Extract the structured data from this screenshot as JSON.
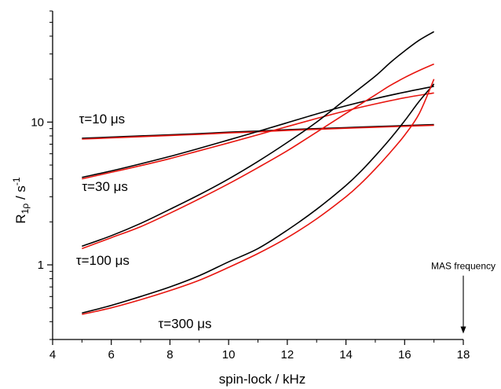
{
  "chart_data": {
    "type": "line",
    "title": "",
    "xlabel": "spin-lock / kHz",
    "ylabel": {
      "main": "R",
      "sub": "1ρ",
      "unit_prefix": " / s",
      "sup": "-1"
    },
    "xlim": [
      4,
      18
    ],
    "ylim": [
      0.3,
      60
    ],
    "yscale": "log",
    "x_ticks": [
      4,
      6,
      8,
      10,
      12,
      14,
      16,
      18
    ],
    "y_ticks": [
      1,
      10
    ],
    "colors": {
      "black_series": "#000000",
      "red_series": "#e8150f",
      "axis": "#000000"
    },
    "series": [
      {
        "color": "black",
        "x": [
          5,
          6,
          7,
          8,
          9,
          10,
          11,
          12,
          13,
          14,
          15,
          16,
          17
        ],
        "y": [
          7.7,
          7.85,
          8.0,
          8.15,
          8.3,
          8.5,
          8.65,
          8.85,
          9.0,
          9.15,
          9.3,
          9.45,
          9.6
        ]
      },
      {
        "color": "red",
        "x": [
          5,
          6,
          7,
          8,
          9,
          10,
          11,
          12,
          13,
          14,
          15,
          16,
          17
        ],
        "y": [
          7.6,
          7.75,
          7.9,
          8.05,
          8.2,
          8.4,
          8.55,
          8.75,
          8.9,
          9.05,
          9.2,
          9.35,
          9.5
        ]
      },
      {
        "color": "black",
        "x": [
          5,
          6,
          7,
          8,
          9,
          10,
          11,
          12,
          13,
          14,
          15,
          16,
          17
        ],
        "y": [
          4.1,
          4.55,
          5.1,
          5.75,
          6.55,
          7.5,
          8.6,
          9.9,
          11.4,
          13.0,
          14.6,
          16.2,
          17.8
        ]
      },
      {
        "color": "red",
        "x": [
          5,
          6,
          7,
          8,
          9,
          10,
          11,
          12,
          13,
          14,
          15,
          16,
          17
        ],
        "y": [
          4.0,
          4.45,
          4.95,
          5.55,
          6.3,
          7.15,
          8.15,
          9.3,
          10.6,
          12.0,
          13.4,
          14.8,
          16.0
        ]
      },
      {
        "color": "black",
        "x": [
          5,
          6,
          7,
          8,
          9,
          10,
          11,
          12,
          13,
          14,
          15,
          15.5,
          16,
          16.5,
          17
        ],
        "y": [
          1.35,
          1.6,
          1.95,
          2.45,
          3.1,
          4.0,
          5.3,
          7.2,
          10.0,
          14.5,
          21.0,
          26.0,
          31.5,
          37.5,
          43.0
        ]
      },
      {
        "color": "red",
        "x": [
          5,
          6,
          7,
          8,
          9,
          10,
          11,
          12,
          13,
          14,
          15,
          15.5,
          16,
          16.5,
          17
        ],
        "y": [
          1.3,
          1.55,
          1.85,
          2.3,
          2.9,
          3.7,
          4.8,
          6.3,
          8.5,
          11.5,
          15.5,
          18.0,
          20.5,
          23.0,
          25.5
        ]
      },
      {
        "color": "black",
        "x": [
          5,
          6,
          7,
          8,
          9,
          10,
          11,
          12,
          13,
          14,
          14.5,
          15,
          15.5,
          16,
          16.5,
          17
        ],
        "y": [
          0.46,
          0.52,
          0.6,
          0.7,
          0.84,
          1.05,
          1.3,
          1.75,
          2.45,
          3.6,
          4.5,
          5.8,
          7.6,
          10.2,
          14.0,
          18.5
        ]
      },
      {
        "color": "red",
        "x": [
          5,
          6,
          7,
          8,
          9,
          10,
          11,
          12,
          13,
          14,
          14.5,
          15,
          15.5,
          16,
          16.5,
          17
        ],
        "y": [
          0.45,
          0.5,
          0.57,
          0.66,
          0.78,
          0.96,
          1.2,
          1.55,
          2.1,
          3.0,
          3.7,
          4.7,
          6.1,
          8.1,
          11.5,
          20.0
        ]
      }
    ],
    "annotations": [
      {
        "text": "τ=10 μs",
        "x": 4.9,
        "y": 9.8
      },
      {
        "text": "τ=30 μs",
        "x": 5.0,
        "y": 3.3
      },
      {
        "text": "τ=100 μs",
        "x": 4.8,
        "y": 1.0
      },
      {
        "text": "τ=300 μs",
        "x": 7.6,
        "y": 0.36
      },
      {
        "text": "MAS frequency",
        "x": 18,
        "y": 0.93,
        "arrow_to_y": 0.33
      }
    ]
  }
}
